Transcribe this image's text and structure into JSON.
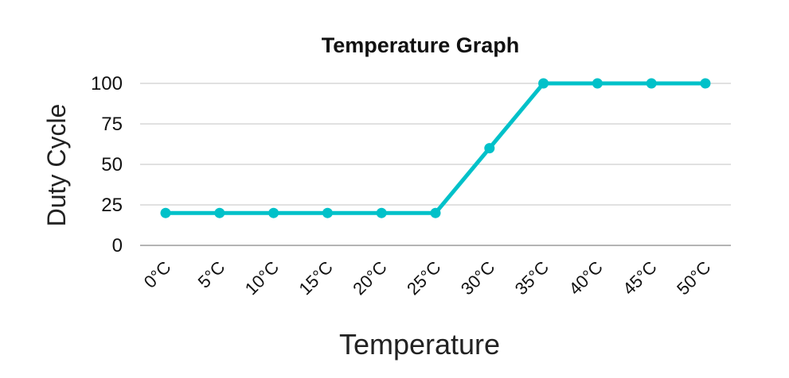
{
  "chart_data": {
    "type": "line",
    "title": "Temperature Graph",
    "xlabel": "Temperature",
    "ylabel": "Duty Cycle",
    "categories": [
      "0°C",
      "5°C",
      "10°C",
      "15°C",
      "20°C",
      "25°C",
      "30°C",
      "35°C",
      "40°C",
      "45°C",
      "50°C"
    ],
    "series": [
      {
        "values": [
          20,
          20,
          20,
          20,
          20,
          20,
          60,
          100,
          100,
          100,
          100
        ],
        "color": "#00c1c9"
      }
    ],
    "ylim": [
      0,
      100
    ],
    "yticks": [
      0,
      25,
      50,
      75,
      100
    ],
    "grid": true,
    "legend": "none"
  }
}
